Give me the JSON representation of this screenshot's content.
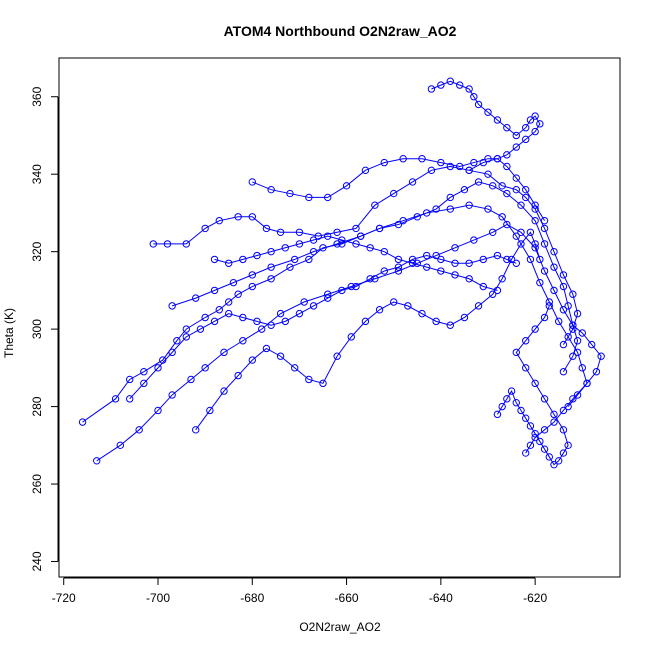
{
  "chart_data": {
    "type": "line",
    "title": "ATOM4 Northbound O2N2raw_AO2",
    "xlabel": "O2N2raw_AO2",
    "ylabel": "Theta (K)",
    "xlim": [
      -721,
      -602
    ],
    "ylim": [
      236,
      370
    ],
    "xticks": [
      -720,
      -700,
      -680,
      -660,
      -640,
      -620
    ],
    "yticks": [
      240,
      260,
      280,
      300,
      320,
      340,
      360
    ],
    "grid": false,
    "legend": "none",
    "marker": "open-circle",
    "color": "#0000ff",
    "series": [
      {
        "x": [
          -716,
          -709,
          -706,
          -703,
          -699,
          -696,
          -694,
          -690,
          -687,
          -685,
          -683,
          -680,
          -676,
          -672,
          -668,
          -665,
          -661,
          -657,
          -653,
          -648,
          -643,
          -638,
          -634,
          -630,
          -627,
          -624,
          -621,
          -619,
          -617,
          -615,
          -613,
          -611,
          -610,
          -609,
          -612,
          -614,
          -616,
          -618,
          -620,
          -621,
          -622
        ],
        "y": [
          276,
          282,
          287,
          289,
          292,
          297,
          300,
          303,
          305,
          307,
          309,
          311,
          313,
          316,
          318,
          321,
          322,
          324,
          326,
          328,
          330,
          331,
          332,
          331,
          329,
          324,
          318,
          312,
          307,
          302,
          298,
          294,
          290,
          286,
          282,
          279,
          276,
          274,
          272,
          270,
          268
        ]
      },
      {
        "x": [
          -713,
          -708,
          -704,
          -700,
          -697,
          -693,
          -690,
          -686,
          -682,
          -678,
          -674,
          -669,
          -664,
          -659,
          -654,
          -649,
          -645,
          -641,
          -637,
          -633,
          -629,
          -626,
          -623,
          -620,
          -618,
          -616,
          -614,
          -612,
          -610,
          -608,
          -606,
          -607,
          -609,
          -611,
          -613
        ],
        "y": [
          266,
          270,
          274,
          279,
          283,
          287,
          290,
          294,
          297,
          300,
          304,
          307,
          309,
          311,
          313,
          315,
          317,
          319,
          321,
          323,
          325,
          327,
          325,
          321,
          315,
          310,
          305,
          301,
          299,
          296,
          293,
          289,
          286,
          283,
          280
        ]
      },
      {
        "x": [
          -701,
          -698,
          -694,
          -690,
          -687,
          -683,
          -680,
          -677,
          -674,
          -670,
          -666,
          -662,
          -658,
          -654,
          -650,
          -646,
          -642,
          -638,
          -634,
          -630,
          -627,
          -624,
          -622,
          -620,
          -618,
          -616,
          -614,
          -612,
          -611,
          -612,
          -614
        ],
        "y": [
          322,
          322,
          322,
          326,
          328,
          329,
          329,
          326,
          325,
          325,
          324,
          325,
          326,
          332,
          335,
          338,
          341,
          342,
          341,
          340,
          337,
          336,
          334,
          331,
          326,
          320,
          314,
          309,
          304,
          300,
          296
        ]
      },
      {
        "x": [
          -697,
          -692,
          -688,
          -684,
          -680,
          -676,
          -671,
          -667,
          -662,
          -657,
          -653,
          -649,
          -645,
          -641,
          -638,
          -635,
          -632,
          -629,
          -626,
          -623,
          -620,
          -618,
          -616,
          -614,
          -613,
          -612,
          -611,
          -612,
          -614
        ],
        "y": [
          306,
          308,
          310,
          312,
          314,
          316,
          318,
          320,
          322,
          324,
          326,
          327,
          329,
          331,
          334,
          336,
          338,
          337,
          335,
          332,
          328,
          322,
          316,
          311,
          306,
          301,
          297,
          293,
          289
        ]
      },
      {
        "x": [
          -706,
          -703,
          -700,
          -697,
          -694,
          -691,
          -688,
          -685,
          -682,
          -679,
          -676,
          -673,
          -670,
          -667,
          -664,
          -661,
          -658,
          -655,
          -652,
          -649,
          -646,
          -643,
          -640,
          -637,
          -634,
          -631,
          -628,
          -626,
          -624
        ],
        "y": [
          282,
          286,
          290,
          294,
          298,
          300,
          302,
          304,
          303,
          302,
          301,
          302,
          304,
          306,
          308,
          310,
          311,
          313,
          315,
          316,
          318,
          319,
          318,
          317,
          317,
          318,
          319,
          318,
          317
        ]
      },
      {
        "x": [
          -680,
          -676,
          -672,
          -668,
          -664,
          -660,
          -656,
          -652,
          -648,
          -644,
          -640,
          -636,
          -633,
          -630,
          -628,
          -626,
          -624,
          -622,
          -620,
          -618
        ],
        "y": [
          338,
          336,
          335,
          334,
          334,
          337,
          341,
          343,
          344,
          344,
          343,
          342,
          343,
          344,
          344,
          342,
          339,
          336,
          332,
          328
        ]
      },
      {
        "x": [
          -642,
          -640,
          -638,
          -636,
          -634,
          -633,
          -632,
          -630,
          -628,
          -626,
          -624,
          -622,
          -621,
          -620,
          -619,
          -620,
          -622,
          -624,
          -626,
          -628,
          -631,
          -634
        ],
        "y": [
          362,
          363,
          364,
          363,
          362,
          360,
          358,
          356,
          354,
          352,
          350,
          352,
          354,
          355,
          353,
          351,
          349,
          347,
          345,
          344,
          343,
          341
        ]
      },
      {
        "x": [
          -692,
          -689,
          -686,
          -683,
          -680,
          -677,
          -674,
          -671,
          -668,
          -665,
          -662,
          -659,
          -656,
          -653,
          -650,
          -647,
          -644,
          -641,
          -638,
          -635,
          -632,
          -629,
          -627,
          -625,
          -623,
          -621,
          -620,
          -619
        ],
        "y": [
          274,
          279,
          284,
          288,
          292,
          295,
          293,
          290,
          287,
          286,
          293,
          298,
          302,
          305,
          307,
          306,
          304,
          302,
          301,
          303,
          306,
          309,
          313,
          318,
          322,
          325,
          322,
          318
        ]
      },
      {
        "x": [
          -628,
          -627,
          -626,
          -625,
          -624,
          -623,
          -622,
          -621,
          -620,
          -619,
          -618,
          -617,
          -616,
          -615,
          -614,
          -613,
          -614,
          -616,
          -618,
          -620,
          -622,
          -624,
          -622,
          -620,
          -618,
          -617
        ],
        "y": [
          278,
          280,
          282,
          284,
          281,
          279,
          277,
          275,
          273,
          271,
          269,
          267,
          265,
          266,
          268,
          270,
          274,
          278,
          282,
          286,
          290,
          294,
          297,
          300,
          303,
          306
        ]
      },
      {
        "x": [
          -688,
          -685,
          -682,
          -679,
          -676,
          -673,
          -670,
          -667,
          -664,
          -661,
          -658,
          -655,
          -652,
          -649,
          -646,
          -643,
          -640,
          -637,
          -634,
          -631,
          -628
        ],
        "y": [
          318,
          317,
          318,
          319,
          320,
          321,
          322,
          323,
          324,
          323,
          322,
          321,
          320,
          318,
          317,
          316,
          315,
          314,
          313,
          311,
          310
        ]
      }
    ]
  }
}
